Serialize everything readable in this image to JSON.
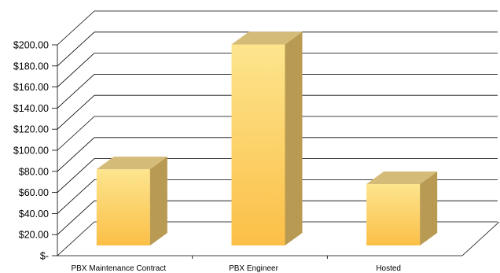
{
  "chart_data": {
    "type": "bar",
    "title": "",
    "xlabel": "",
    "ylabel": "",
    "categories": [
      "PBX Maintenance Contract",
      "PBX Engineer",
      "Hosted"
    ],
    "values": [
      72,
      190,
      58
    ],
    "ylim": [
      0,
      200
    ],
    "y_ticks": [
      {
        "value": 0,
        "label": "$-"
      },
      {
        "value": 20,
        "label": "$20.00"
      },
      {
        "value": 40,
        "label": "$40.00"
      },
      {
        "value": 60,
        "label": "$60.00"
      },
      {
        "value": 80,
        "label": "$80.00"
      },
      {
        "value": 100,
        "label": "$100.00"
      },
      {
        "value": 120,
        "label": "$120.00"
      },
      {
        "value": 140,
        "label": "$140.00"
      },
      {
        "value": 160,
        "label": "$160.00"
      },
      {
        "value": 180,
        "label": "$180.00"
      },
      {
        "value": 200,
        "label": "$200.00"
      }
    ],
    "grid": true,
    "legend": "none",
    "style": "3d-column",
    "colors": {
      "bar_front_top": "#fde58e",
      "bar_front_bottom": "#fbbf47",
      "bar_side": "#b89a52",
      "bar_top": "#d4bb77",
      "grid": "#000000"
    }
  }
}
